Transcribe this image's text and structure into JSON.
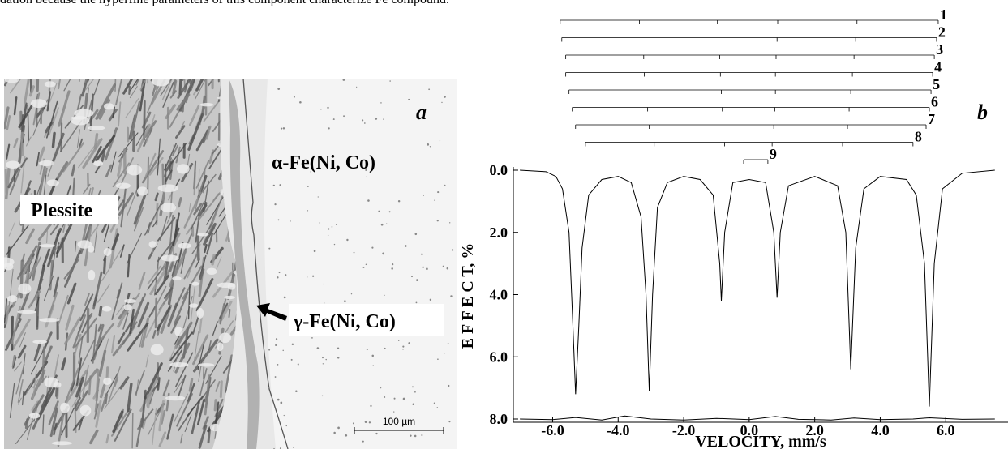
{
  "text": "dation because the hyperfine parameters of this component characterize Fe compound.",
  "figure_a": {
    "panel_label": "a",
    "labels": [
      "α-Fe(Ni, Co)",
      "Plessite",
      "γ-Fe(Ni, Co)"
    ],
    "scale_bar": "100 µm"
  },
  "chart_data": {
    "type": "line",
    "panel_label": "b",
    "x_label": "VELOCITY,  mm/s",
    "y_label": "E F F E C T,  %",
    "xlim": [
      -7.2,
      7.9
    ],
    "ylim": [
      0,
      8
    ],
    "y_inverted": true,
    "color": "#000000",
    "xticks": [
      {
        "value": -6,
        "label": "-6.0"
      },
      {
        "value": -4,
        "label": "-4.0"
      },
      {
        "value": -2,
        "label": "-2.0"
      },
      {
        "value": 0,
        "label": "0.0"
      },
      {
        "value": 2,
        "label": "2.0"
      },
      {
        "value": 4,
        "label": "4.0"
      },
      {
        "value": 6,
        "label": "6.0"
      }
    ],
    "yticks": [
      {
        "value": 0,
        "label": "0.0"
      },
      {
        "value": 2,
        "label": "2.0"
      },
      {
        "value": 4,
        "label": "4.0"
      },
      {
        "value": 6,
        "label": "6.0"
      },
      {
        "value": 8,
        "label": "8.0"
      }
    ],
    "series": [
      {
        "x": [
          -7.0,
          -6.2,
          -5.9,
          -5.7,
          -5.5,
          -5.4,
          -5.3,
          -5.2,
          -5.1,
          -4.9,
          -4.5,
          -4.0,
          -3.6,
          -3.3,
          -3.15,
          -3.05,
          -2.95,
          -2.8,
          -2.5,
          -2.0,
          -1.5,
          -1.1,
          -0.9,
          -0.85,
          -0.75,
          -0.5,
          0.0,
          0.5,
          0.75,
          0.85,
          0.95,
          1.2,
          2.0,
          2.7,
          2.95,
          3.1,
          3.25,
          3.5,
          4.0,
          4.8,
          5.1,
          5.35,
          5.5,
          5.65,
          5.9,
          6.5,
          7.5
        ],
        "values": [
          0.0,
          0.05,
          0.2,
          0.6,
          2.0,
          4.5,
          7.2,
          5.0,
          2.5,
          0.8,
          0.3,
          0.2,
          0.4,
          1.5,
          4.0,
          7.1,
          4.0,
          1.2,
          0.4,
          0.2,
          0.3,
          0.8,
          3.0,
          4.2,
          2.0,
          0.4,
          0.3,
          0.4,
          2.0,
          4.1,
          2.0,
          0.5,
          0.2,
          0.5,
          2.0,
          6.4,
          2.5,
          0.6,
          0.2,
          0.3,
          0.8,
          3.0,
          7.6,
          3.0,
          0.6,
          0.1,
          0.0
        ]
      },
      {
        "x": [
          -7.0,
          -6.0,
          -5.3,
          -4.5,
          -3.8,
          -3.0,
          -2.0,
          -1.0,
          0.0,
          0.8,
          1.5,
          2.5,
          3.2,
          4.0,
          5.0,
          5.5,
          6.5,
          7.5
        ],
        "values": [
          8.0,
          8.02,
          7.95,
          8.03,
          7.9,
          8.0,
          8.03,
          7.98,
          8.02,
          7.92,
          8.01,
          8.03,
          7.97,
          8.02,
          8.0,
          7.96,
          8.01,
          8.0
        ]
      }
    ],
    "components": [
      {
        "label": "1",
        "positions": [
          -5.77,
          -3.35,
          -0.97,
          0.87,
          3.29,
          5.77
        ]
      },
      {
        "label": "2",
        "positions": [
          -5.72,
          -3.3,
          -0.95,
          0.85,
          3.25,
          5.72
        ]
      },
      {
        "label": "3",
        "positions": [
          -5.6,
          -3.22,
          -0.9,
          0.82,
          3.2,
          5.65
        ]
      },
      {
        "label": "4",
        "positions": [
          -5.6,
          -3.2,
          -0.88,
          0.8,
          3.15,
          5.6
        ]
      },
      {
        "label": "5",
        "positions": [
          -5.5,
          -3.15,
          -0.85,
          0.8,
          3.1,
          5.55
        ]
      },
      {
        "label": "6",
        "positions": [
          -5.4,
          -3.1,
          -0.82,
          0.78,
          3.05,
          5.5
        ]
      },
      {
        "label": "7",
        "positions": [
          -5.3,
          -3.05,
          -0.8,
          0.75,
          3.0,
          5.4
        ]
      },
      {
        "label": "8",
        "positions": [
          -5.0,
          -2.9,
          -0.75,
          0.7,
          2.85,
          5.0
        ]
      },
      {
        "label": "9",
        "positions": [
          -0.17,
          0.57
        ]
      }
    ]
  }
}
